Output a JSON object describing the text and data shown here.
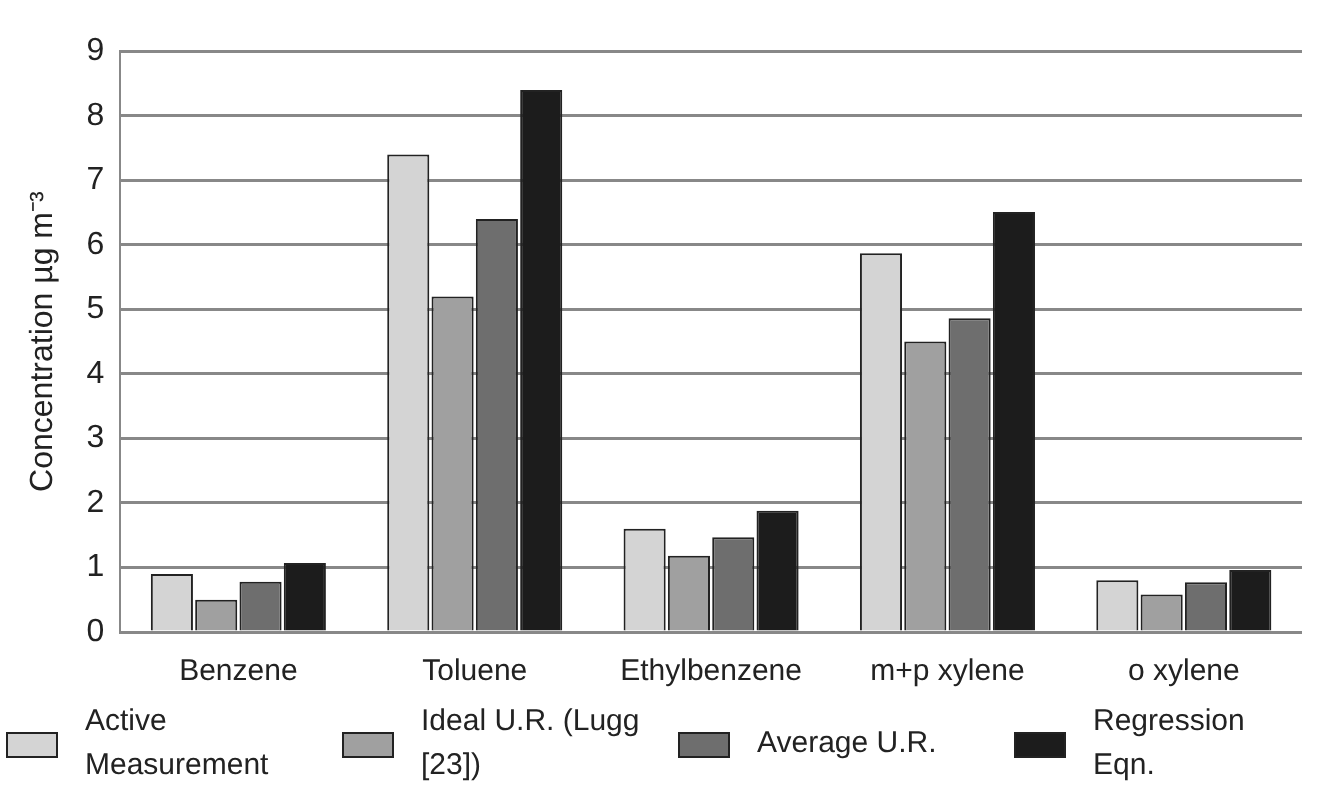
{
  "chart_data": {
    "type": "bar",
    "ylabel": "Concentration µg m⁻³",
    "categories": [
      "Benzene",
      "Toluene",
      "Ethylbenzene",
      "m+p xylene",
      "o xylene"
    ],
    "series": [
      {
        "name": "Active Measurement",
        "color": "#d4d4d4",
        "values": [
          0.9,
          7.4,
          1.6,
          5.87,
          0.8
        ]
      },
      {
        "name": "Ideal U.R. (Lugg [23])",
        "color": "#a0a0a0",
        "values": [
          0.5,
          5.2,
          1.18,
          4.5,
          0.58
        ]
      },
      {
        "name": "Average U.R.",
        "color": "#6e6e6e",
        "values": [
          0.78,
          6.4,
          1.47,
          4.86,
          0.77
        ]
      },
      {
        "name": "Regression Eqn.",
        "color": "#1c1c1c",
        "values": [
          1.07,
          8.4,
          1.88,
          6.51,
          0.96
        ]
      }
    ],
    "ylim": [
      0,
      9
    ],
    "yticks": [
      0,
      1,
      2,
      3,
      4,
      5,
      6,
      7,
      8,
      9
    ],
    "grid": "y",
    "legend": "bottom"
  }
}
